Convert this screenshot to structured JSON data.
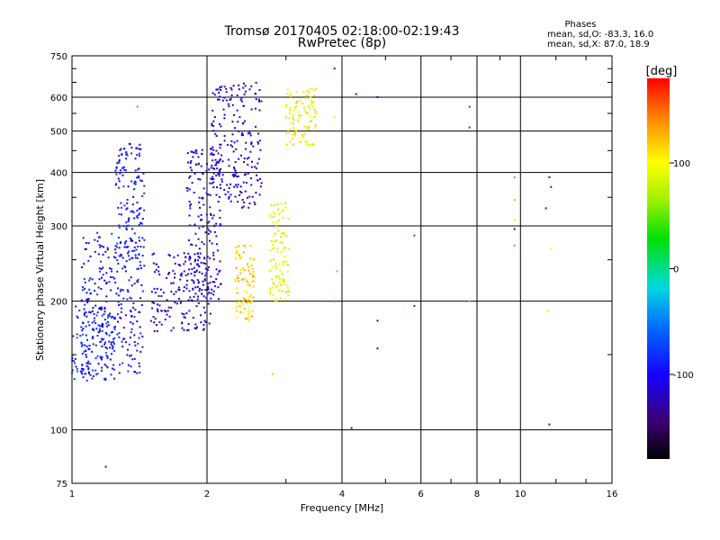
{
  "header": {
    "title": "Tromsø 20170405 02:18:00-02:19:43",
    "subtitle": "RwPretec (8p)",
    "phases_title": "Phases",
    "phases_o": "mean, sd,O: -83.3, 16.0",
    "phases_x": "mean, sd,X:  87.0, 18.9"
  },
  "colorbar": {
    "label": "[deg]",
    "ticks": [
      "100",
      "0",
      "-100"
    ],
    "range": [
      -180,
      180
    ]
  },
  "chart_data": {
    "type": "scatter",
    "xlabel": "Frequency [MHz]",
    "ylabel": "Stationary phase Virtual Height [km]",
    "xscale": "log",
    "yscale": "log",
    "xlim": [
      1,
      16
    ],
    "ylim": [
      75,
      750
    ],
    "x_ticks": [
      "1",
      "2",
      "4",
      "6",
      "8",
      "10",
      "16"
    ],
    "y_ticks": [
      "75",
      "100",
      "200",
      "300",
      "400",
      "500",
      "600",
      "750"
    ],
    "grid": true,
    "clusters": [
      {
        "x": [
          1.0,
          1.25
        ],
        "y": [
          130,
          200
        ],
        "phase": -85
      },
      {
        "x": [
          1.05,
          1.45
        ],
        "y": [
          135,
          290
        ],
        "phase": -95
      },
      {
        "x": [
          1.25,
          1.45
        ],
        "y": [
          250,
          470
        ],
        "phase": -92
      },
      {
        "x": [
          1.5,
          2.05
        ],
        "y": [
          170,
          260
        ],
        "phase": -115
      },
      {
        "x": [
          1.8,
          2.15
        ],
        "y": [
          200,
          460
        ],
        "phase": -112
      },
      {
        "x": [
          2.05,
          2.65
        ],
        "y": [
          330,
          650
        ],
        "phase": -118
      },
      {
        "x": [
          2.3,
          2.55
        ],
        "y": [
          180,
          270
        ],
        "phase": 115
      },
      {
        "x": [
          2.75,
          3.05
        ],
        "y": [
          200,
          340
        ],
        "phase": 92
      },
      {
        "x": [
          3.0,
          3.5
        ],
        "y": [
          460,
          640
        ],
        "phase": 100
      }
    ],
    "scattered_points": [
      {
        "x": 1.19,
        "y": 82,
        "phase": -120
      },
      {
        "x": 1.4,
        "y": 570,
        "phase": 150
      },
      {
        "x": 3.85,
        "y": 700,
        "phase": -118
      },
      {
        "x": 4.3,
        "y": 610,
        "phase": -110
      },
      {
        "x": 4.8,
        "y": 600,
        "phase": -110
      },
      {
        "x": 4.2,
        "y": 101,
        "phase": -118
      },
      {
        "x": 4.8,
        "y": 180,
        "phase": -115
      },
      {
        "x": 4.8,
        "y": 155,
        "phase": -110
      },
      {
        "x": 5.8,
        "y": 285,
        "phase": -70
      },
      {
        "x": 5.8,
        "y": 195,
        "phase": -80
      },
      {
        "x": 7.7,
        "y": 570,
        "phase": -75
      },
      {
        "x": 7.7,
        "y": 510,
        "phase": -80
      },
      {
        "x": 7.7,
        "y": 200,
        "phase": 50
      },
      {
        "x": 9.7,
        "y": 390,
        "phase": 150
      },
      {
        "x": 9.7,
        "y": 345,
        "phase": 130
      },
      {
        "x": 9.7,
        "y": 310,
        "phase": 110
      },
      {
        "x": 9.7,
        "y": 270,
        "phase": 40
      },
      {
        "x": 9.7,
        "y": 295,
        "phase": -120
      },
      {
        "x": 11.4,
        "y": 330,
        "phase": -120
      },
      {
        "x": 11.6,
        "y": 390,
        "phase": -110
      },
      {
        "x": 11.7,
        "y": 370,
        "phase": -90
      },
      {
        "x": 11.7,
        "y": 265,
        "phase": 100
      },
      {
        "x": 11.5,
        "y": 190,
        "phase": 110
      },
      {
        "x": 11.6,
        "y": 103,
        "phase": -100
      },
      {
        "x": 3.85,
        "y": 200,
        "phase": 160
      },
      {
        "x": 3.9,
        "y": 235,
        "phase": 50
      },
      {
        "x": 3.85,
        "y": 540,
        "phase": 100
      },
      {
        "x": 2.8,
        "y": 135,
        "phase": 120
      },
      {
        "x": 2.2,
        "y": 640,
        "phase": 100
      }
    ]
  }
}
